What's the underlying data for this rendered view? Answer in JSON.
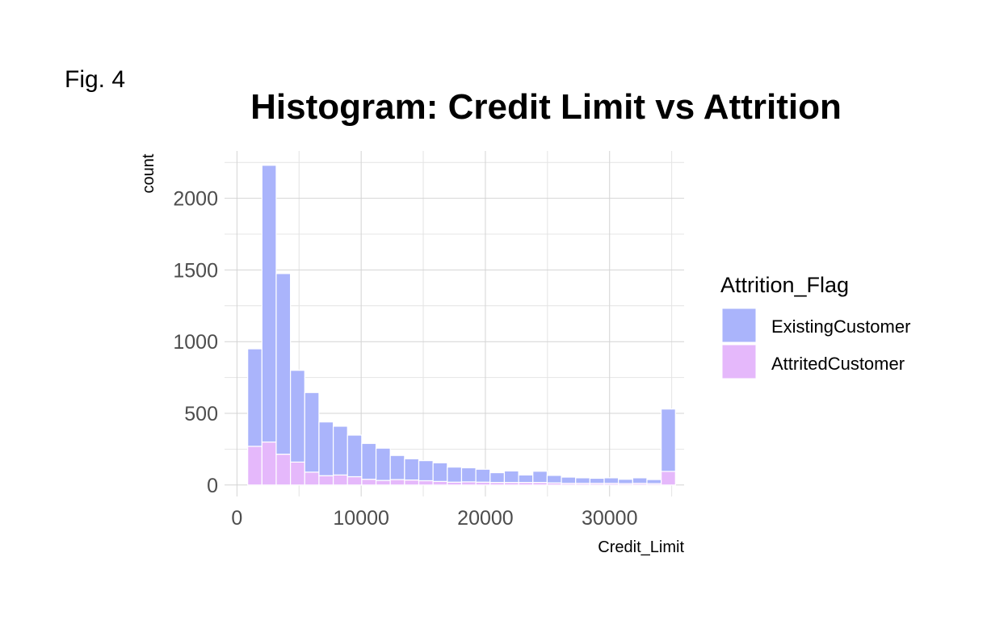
{
  "figure_label": "Fig. 4",
  "chart_data": {
    "type": "bar",
    "stacked": true,
    "title": "Histogram: Credit Limit vs Attrition",
    "xlabel": "Credit_Limit",
    "ylabel": "count",
    "xlim": [
      -1000,
      36000
    ],
    "ylim": [
      -80,
      2330
    ],
    "xticks": [
      0,
      10000,
      20000,
      30000
    ],
    "yticks": [
      0,
      500,
      1000,
      1500,
      2000
    ],
    "grid": true,
    "bin_width": 1148,
    "bin_centers": [
      1438,
      2586,
      3734,
      4882,
      6030,
      7178,
      8326,
      9474,
      10622,
      11770,
      12918,
      14066,
      15214,
      16362,
      17510,
      18658,
      19806,
      20954,
      22102,
      23250,
      24398,
      25546,
      26694,
      27842,
      28990,
      30138,
      31286,
      32434,
      33582,
      34730
    ],
    "legend": {
      "title": "Attrition_Flag",
      "position": "right"
    },
    "series": [
      {
        "name": "AttritedCustomer",
        "color": "#e5b8fb",
        "values": [
          270,
          300,
          215,
          160,
          90,
          65,
          70,
          58,
          40,
          32,
          38,
          35,
          30,
          25,
          20,
          22,
          20,
          18,
          18,
          18,
          18,
          15,
          12,
          12,
          12,
          12,
          10,
          12,
          10,
          95
        ]
      },
      {
        "name": "ExistingCustomer",
        "color": "#aab4fb",
        "values": [
          680,
          1930,
          1260,
          640,
          555,
          375,
          340,
          290,
          250,
          225,
          168,
          148,
          140,
          130,
          105,
          98,
          90,
          68,
          80,
          52,
          78,
          52,
          43,
          38,
          35,
          38,
          30,
          38,
          28,
          435
        ]
      }
    ]
  }
}
